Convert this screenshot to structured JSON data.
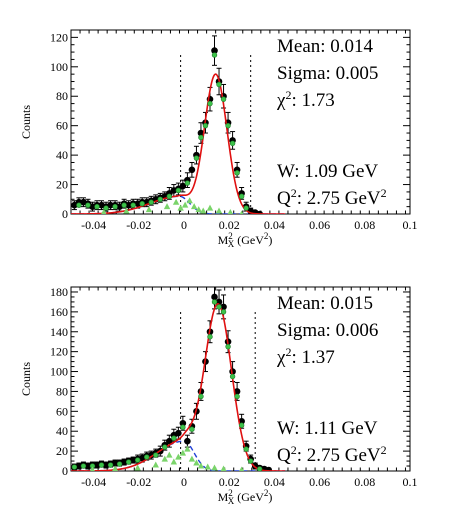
{
  "chart_data": [
    {
      "type": "scatter",
      "xlabel_base": "M",
      "xlabel_sup": "2",
      "xlabel_sub": "X",
      "xlabel_unit": " (GeV",
      "xlabel_unit_sup": "2",
      "xlabel_close": ")",
      "ylabel": "Counts",
      "xlim": [
        -0.05,
        0.1
      ],
      "ylim": [
        0,
        125
      ],
      "xticks": [
        -0.04,
        -0.02,
        0,
        0.02,
        0.04,
        0.06,
        0.08,
        0.1
      ],
      "xtick_labels": [
        "-0.04",
        "-0.02",
        "0",
        "0.02",
        "0.04",
        "0.06",
        "0.08",
        "0.1"
      ],
      "yticks": [
        0,
        20,
        40,
        60,
        80,
        100,
        120
      ],
      "ytick_labels": [
        "0",
        "20",
        "40",
        "60",
        "80",
        "100",
        "120"
      ],
      "cut_lines": [
        -0.0015,
        0.0295
      ],
      "fit": {
        "amplitude": 95,
        "mean": 0.014,
        "sigma": 0.005,
        "bg_amp": 12,
        "bg_center": -0.002,
        "bg_left": 0.013,
        "bg_right": 0.0045
      },
      "stats": {
        "mean": "Mean: 0.014",
        "sigma": "Sigma: 0.005",
        "chi_symbol": "χ",
        "chi_sup": "2",
        "chi_value": ": 1.73",
        "w": "W: 1.09 GeV",
        "q_base": "Q",
        "q_sup": "2",
        "q_value": ": 2.75 GeV",
        "q_unit_sup": "2"
      },
      "series": [
        {
          "marker": "black-circle",
          "points": [
            [
              -0.0485,
              6,
              3
            ],
            [
              -0.0465,
              8,
              3
            ],
            [
              -0.0445,
              8,
              3
            ],
            [
              -0.0425,
              7,
              3
            ],
            [
              -0.0405,
              5,
              3
            ],
            [
              -0.0385,
              6,
              3
            ],
            [
              -0.0365,
              6,
              3
            ],
            [
              -0.0345,
              5,
              3
            ],
            [
              -0.0325,
              6,
              3
            ],
            [
              -0.0305,
              6,
              3
            ],
            [
              -0.0285,
              5,
              3
            ],
            [
              -0.0265,
              7,
              3
            ],
            [
              -0.0245,
              6,
              3
            ],
            [
              -0.0225,
              7,
              3
            ],
            [
              -0.0205,
              7,
              3
            ],
            [
              -0.0185,
              8,
              3
            ],
            [
              -0.0165,
              8,
              3
            ],
            [
              -0.0145,
              9,
              3
            ],
            [
              -0.0125,
              10,
              3
            ],
            [
              -0.0105,
              11,
              3
            ],
            [
              -0.0085,
              12,
              3
            ],
            [
              -0.0065,
              14,
              4
            ],
            [
              -0.0045,
              16,
              4
            ],
            [
              -0.0025,
              17,
              4
            ],
            [
              -0.0005,
              19,
              4
            ],
            [
              0.0015,
              23,
              5
            ],
            [
              0.0035,
              30,
              5
            ],
            [
              0.0055,
              40,
              6
            ],
            [
              0.0075,
              55,
              7
            ],
            [
              0.0095,
              62,
              7
            ],
            [
              0.0115,
              78,
              8
            ],
            [
              0.0135,
              111,
              10
            ],
            [
              0.0155,
              90,
              9
            ],
            [
              0.0175,
              80,
              8
            ],
            [
              0.0195,
              62,
              7
            ],
            [
              0.0215,
              50,
              6
            ],
            [
              0.0235,
              30,
              5
            ],
            [
              0.0255,
              14,
              4
            ],
            [
              0.0275,
              5,
              3
            ],
            [
              0.0295,
              2,
              2
            ],
            [
              0.0315,
              1,
              1
            ],
            [
              0.0335,
              0,
              1
            ]
          ]
        },
        {
          "marker": "green-circle",
          "points": [
            [
              -0.0465,
              6
            ],
            [
              -0.0425,
              6
            ],
            [
              -0.0385,
              5
            ],
            [
              -0.0345,
              4
            ],
            [
              -0.0305,
              5
            ],
            [
              -0.0265,
              6
            ],
            [
              -0.0225,
              6
            ],
            [
              -0.0185,
              7
            ],
            [
              -0.0145,
              8
            ],
            [
              -0.0105,
              10
            ],
            [
              -0.0065,
              12
            ],
            [
              -0.0025,
              16
            ],
            [
              0.0015,
              21
            ],
            [
              0.0055,
              38
            ],
            [
              0.0075,
              52
            ],
            [
              0.0095,
              60
            ],
            [
              0.0115,
              75
            ],
            [
              0.0135,
              108
            ],
            [
              0.0155,
              88
            ],
            [
              0.0175,
              78
            ],
            [
              0.0195,
              60
            ],
            [
              0.0215,
              48
            ],
            [
              0.0235,
              28
            ],
            [
              0.0255,
              12
            ],
            [
              0.0275,
              4
            ]
          ]
        },
        {
          "marker": "green-triangle",
          "points": [
            [
              -0.0355,
              1
            ],
            [
              -0.0255,
              2
            ],
            [
              -0.0155,
              3
            ],
            [
              -0.0075,
              5
            ],
            [
              -0.0035,
              8
            ],
            [
              -0.0015,
              4
            ],
            [
              0.0005,
              6
            ],
            [
              0.0025,
              9
            ],
            [
              0.0045,
              5
            ],
            [
              0.0065,
              3
            ],
            [
              0.0085,
              2
            ],
            [
              0.0115,
              4
            ],
            [
              0.0155,
              2
            ],
            [
              0.0205,
              1
            ],
            [
              0.0255,
              0
            ]
          ]
        }
      ]
    },
    {
      "type": "scatter",
      "xlabel_base": "M",
      "xlabel_sup": "2",
      "xlabel_sub": "X",
      "xlabel_unit": " (GeV",
      "xlabel_unit_sup": "2",
      "xlabel_close": ")",
      "ylabel": "Counts",
      "xlim": [
        -0.05,
        0.1
      ],
      "ylim": [
        0,
        185
      ],
      "xticks": [
        -0.04,
        -0.02,
        0,
        0.02,
        0.04,
        0.06,
        0.08,
        0.1
      ],
      "xtick_labels": [
        "-0.04",
        "-0.02",
        "0",
        "0.02",
        "0.04",
        "0.06",
        "0.08",
        "0.1"
      ],
      "yticks": [
        0,
        20,
        40,
        60,
        80,
        100,
        120,
        140,
        160,
        180
      ],
      "ytick_labels": [
        "0",
        "20",
        "40",
        "60",
        "80",
        "100",
        "120",
        "140",
        "160",
        "180"
      ],
      "cut_lines": [
        -0.0015,
        0.0315
      ],
      "fit": {
        "amplitude": 168,
        "mean": 0.015,
        "sigma": 0.006,
        "bg_amp": 30,
        "bg_center": 0.0,
        "bg_left": 0.012,
        "bg_right": 0.0045
      },
      "stats": {
        "mean": "Mean: 0.015",
        "sigma": "Sigma: 0.006",
        "chi_symbol": "χ",
        "chi_sup": "2",
        "chi_value": ": 1.37",
        "w": "W: 1.11 GeV",
        "q_base": "Q",
        "q_sup": "2",
        "q_value": ": 2.75 GeV",
        "q_unit_sup": "2"
      },
      "series": [
        {
          "marker": "black-circle",
          "points": [
            [
              -0.0485,
              4,
              3
            ],
            [
              -0.0465,
              5,
              3
            ],
            [
              -0.0445,
              6,
              3
            ],
            [
              -0.0425,
              5,
              3
            ],
            [
              -0.0405,
              6,
              3
            ],
            [
              -0.0385,
              6,
              3
            ],
            [
              -0.0365,
              7,
              3
            ],
            [
              -0.0345,
              6,
              3
            ],
            [
              -0.0325,
              7,
              3
            ],
            [
              -0.0305,
              8,
              3
            ],
            [
              -0.0285,
              8,
              3
            ],
            [
              -0.0265,
              9,
              3
            ],
            [
              -0.0245,
              10,
              3
            ],
            [
              -0.0225,
              11,
              3
            ],
            [
              -0.0205,
              12,
              4
            ],
            [
              -0.0185,
              13,
              4
            ],
            [
              -0.0165,
              15,
              4
            ],
            [
              -0.0145,
              16,
              4
            ],
            [
              -0.0125,
              18,
              4
            ],
            [
              -0.0105,
              20,
              5
            ],
            [
              -0.0085,
              26,
              5
            ],
            [
              -0.0065,
              30,
              6
            ],
            [
              -0.0045,
              36,
              6
            ],
            [
              -0.0025,
              38,
              6
            ],
            [
              -0.0005,
              48,
              7
            ],
            [
              0.0015,
              30,
              6
            ],
            [
              0.0035,
              45,
              7
            ],
            [
              0.0055,
              60,
              8
            ],
            [
              0.0075,
              80,
              9
            ],
            [
              0.0095,
              110,
              10
            ],
            [
              0.0115,
              140,
              11
            ],
            [
              0.0135,
              175,
              12
            ],
            [
              0.0155,
              170,
              12
            ],
            [
              0.0175,
              165,
              12
            ],
            [
              0.0195,
              130,
              11
            ],
            [
              0.0215,
              100,
              10
            ],
            [
              0.0235,
              80,
              9
            ],
            [
              0.0255,
              50,
              7
            ],
            [
              0.0275,
              25,
              5
            ],
            [
              0.0295,
              12,
              4
            ],
            [
              0.0315,
              5,
              3
            ],
            [
              0.0335,
              3,
              2
            ],
            [
              0.0355,
              2,
              2
            ],
            [
              0.0375,
              1,
              1
            ]
          ]
        },
        {
          "marker": "green-circle",
          "points": [
            [
              -0.0485,
              4
            ],
            [
              -0.0445,
              5
            ],
            [
              -0.0405,
              5
            ],
            [
              -0.0365,
              6
            ],
            [
              -0.0325,
              6
            ],
            [
              -0.0285,
              7
            ],
            [
              -0.0245,
              9
            ],
            [
              -0.0205,
              11
            ],
            [
              -0.0165,
              14
            ],
            [
              -0.0125,
              16
            ],
            [
              -0.0085,
              24
            ],
            [
              -0.0045,
              33
            ],
            [
              -0.0005,
              44
            ],
            [
              0.0035,
              42
            ],
            [
              0.0075,
              75
            ],
            [
              0.0115,
              135
            ],
            [
              0.0135,
              170
            ],
            [
              0.0155,
              165
            ],
            [
              0.0175,
              160
            ],
            [
              0.0195,
              125
            ],
            [
              0.0215,
              95
            ],
            [
              0.0235,
              75
            ],
            [
              0.0255,
              46
            ],
            [
              0.0275,
              22
            ],
            [
              0.0295,
              10
            ],
            [
              0.0335,
              2
            ]
          ]
        },
        {
          "marker": "green-triangle",
          "points": [
            [
              -0.0405,
              1
            ],
            [
              -0.0305,
              2
            ],
            [
              -0.0205,
              3
            ],
            [
              -0.0125,
              6
            ],
            [
              -0.0085,
              12
            ],
            [
              -0.0065,
              16
            ],
            [
              -0.0045,
              9
            ],
            [
              -0.0025,
              14
            ],
            [
              -0.0005,
              18
            ],
            [
              0.0015,
              22
            ],
            [
              0.0035,
              12
            ],
            [
              0.0055,
              8
            ],
            [
              0.0075,
              5
            ],
            [
              0.0105,
              4
            ],
            [
              0.0135,
              3
            ],
            [
              0.0175,
              2
            ],
            [
              0.0255,
              1
            ]
          ]
        }
      ]
    }
  ]
}
